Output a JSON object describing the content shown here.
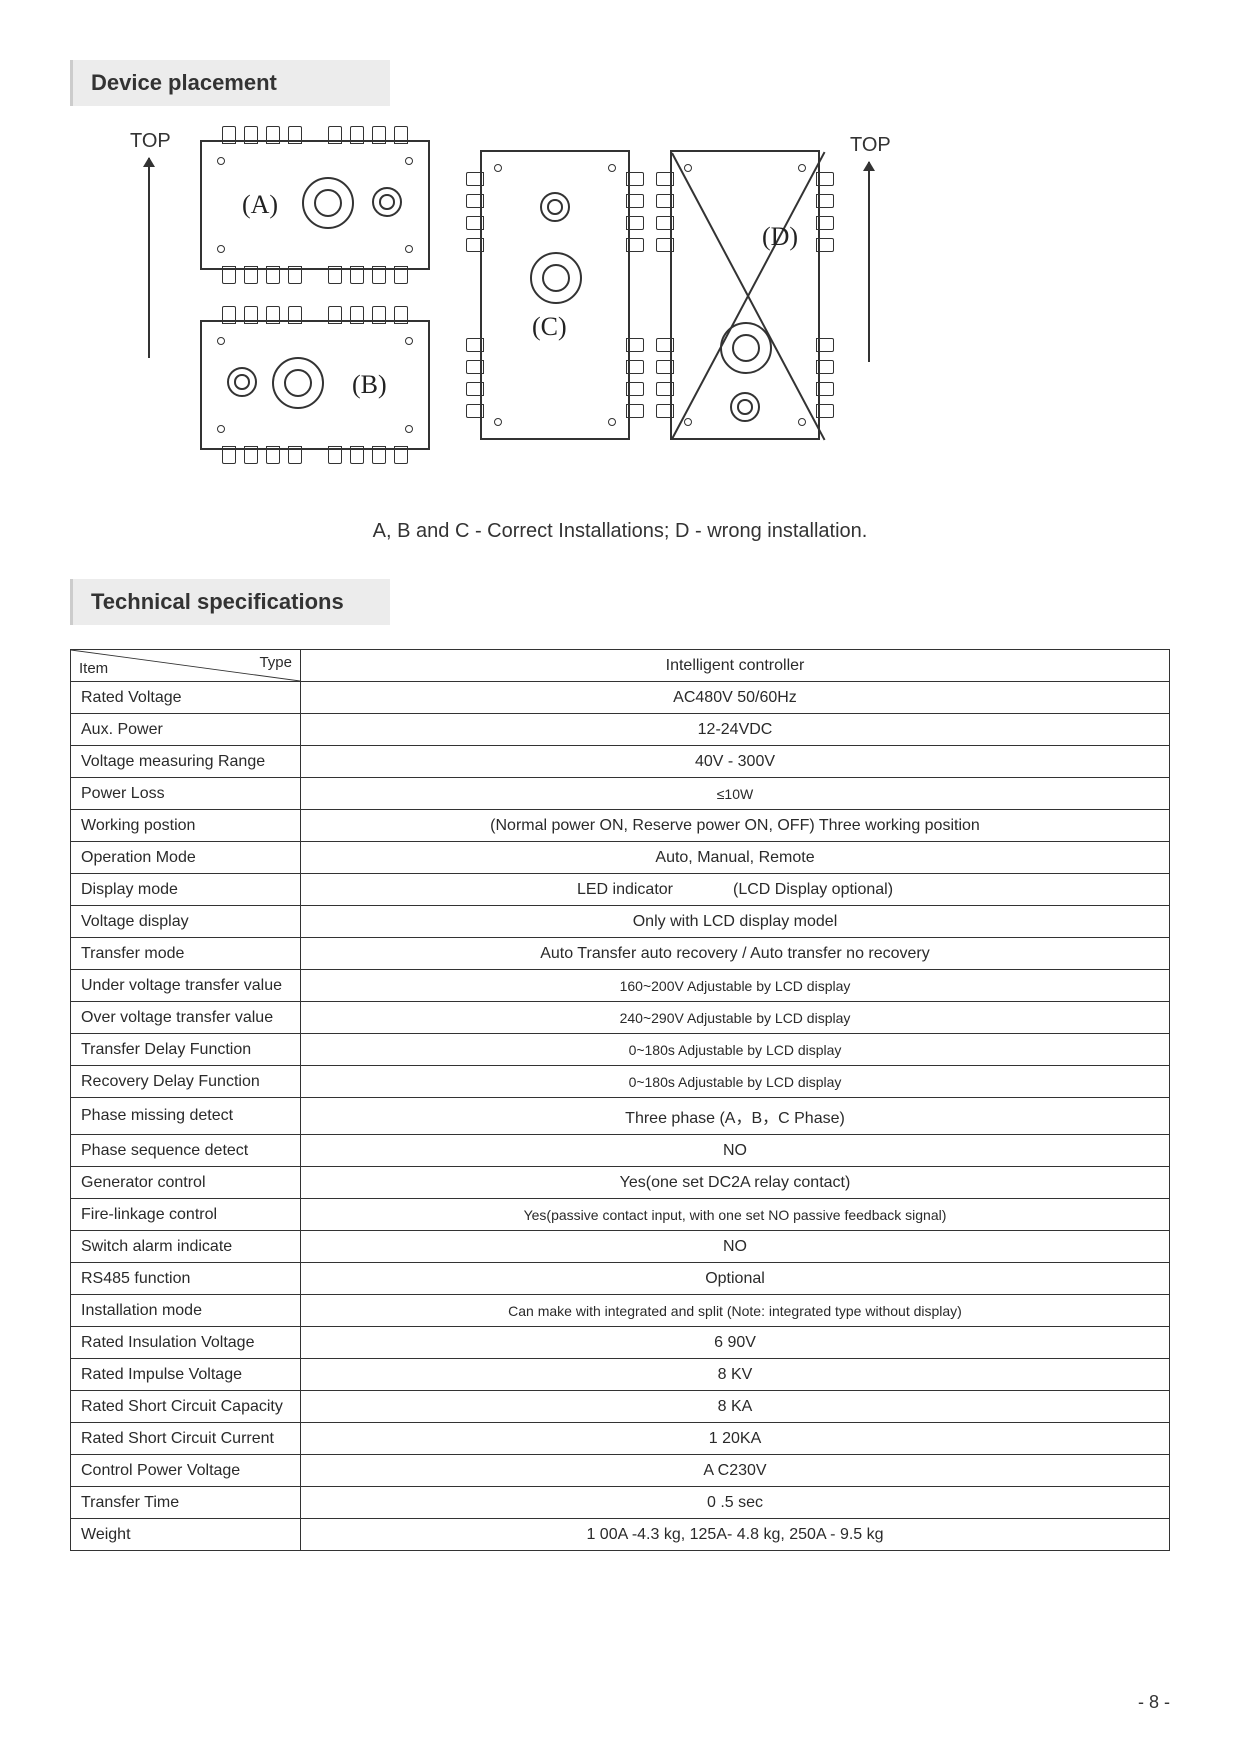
{
  "sections": {
    "placement_title": "Device placement",
    "specs_title": "Technical specifications"
  },
  "placement": {
    "top_label": "TOP",
    "diagram_labels": {
      "a": "(A)",
      "b": "(B)",
      "c": "(C)",
      "d": "(D)"
    },
    "caption": "A, B and C - Correct Installations; D - wrong installation."
  },
  "spec_header": {
    "item": "Item",
    "type": "Type",
    "controller": "Intelligent controller"
  },
  "specs": [
    {
      "item": "Rated Voltage",
      "value": "AC480V 50/60Hz"
    },
    {
      "item": "Aux. Power",
      "value": "12-24VDC"
    },
    {
      "item": "Voltage measuring Range",
      "value": "40V - 300V"
    },
    {
      "item": "Power Loss",
      "value": "≤10W",
      "small": true
    },
    {
      "item": "Working postion",
      "value": "(Normal power ON, Reserve power ON, OFF) Three working position"
    },
    {
      "item": "Operation Mode",
      "value": "Auto, Manual, Remote"
    },
    {
      "item": "Display mode",
      "value_parts": [
        "LED indicator",
        "(LCD Display optional)"
      ]
    },
    {
      "item": "Voltage display",
      "value": "Only with LCD display model"
    },
    {
      "item": "Transfer mode",
      "value": "Auto Transfer auto recovery / Auto transfer no recovery"
    },
    {
      "item": "Under voltage transfer value",
      "value": "160~200V Adjustable by LCD display",
      "small": true
    },
    {
      "item": "Over voltage transfer value",
      "value": "240~290V Adjustable by LCD display",
      "small": true
    },
    {
      "item": "Transfer Delay Function",
      "value": "0~180s Adjustable by LCD display",
      "small": true
    },
    {
      "item": "Recovery Delay Function",
      "value": "0~180s Adjustable by LCD display",
      "small": true
    },
    {
      "item": "Phase missing detect",
      "value": "Three phase (A，B，C Phase)"
    },
    {
      "item": "Phase sequence detect",
      "value": "NO"
    },
    {
      "item": "Generator control",
      "value": "Yes(one set DC2A relay contact)"
    },
    {
      "item": "Fire-linkage control",
      "value": "Yes(passive contact input, with one set NO passive feedback signal)",
      "small": true
    },
    {
      "item": "Switch alarm indicate",
      "value": "NO"
    },
    {
      "item": "RS485 function",
      "value": "Optional"
    },
    {
      "item": "Installation mode",
      "value": "Can make with integrated and split (Note: integrated type without display)",
      "small": true
    },
    {
      "item": "Rated Insulation Voltage",
      "value": "6   90V"
    },
    {
      "item": "Rated Impulse Voltage",
      "value": "8   KV"
    },
    {
      "item": "Rated Short Circuit Capacity",
      "value": "8    KA"
    },
    {
      "item": "Rated Short Circuit Current",
      "value": "1   20KA"
    },
    {
      "item": "Control Power Voltage",
      "value": "A   C230V"
    },
    {
      "item": "Transfer Time",
      "value": "0  .5 sec"
    },
    {
      "item": "Weight",
      "value": "1 00A -4.3 kg, 125A- 4.8 kg, 250A - 9.5 kg"
    }
  ],
  "page_number": "- 8 -",
  "colors": {
    "header_bg": "#ececec",
    "border": "#333333",
    "text": "#2a2a2a"
  }
}
